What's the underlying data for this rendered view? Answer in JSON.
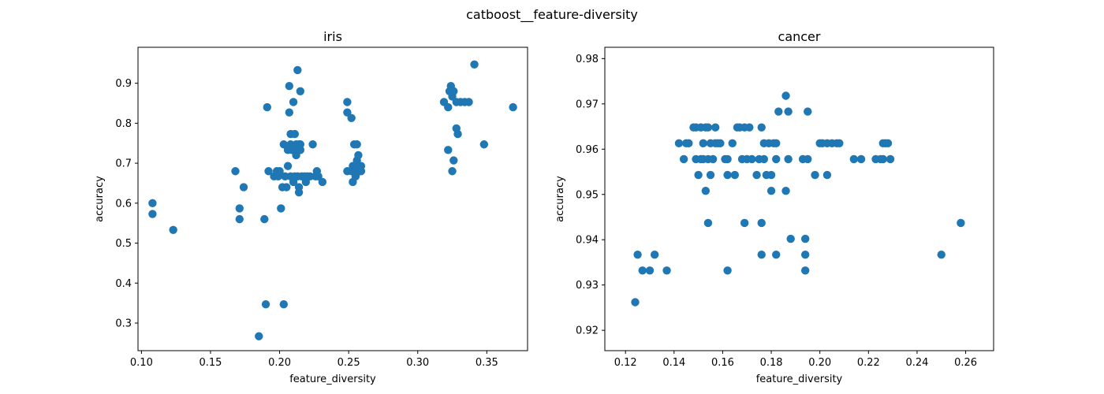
{
  "suptitle": "catboost__feature-diversity",
  "chart_data": [
    {
      "type": "scatter",
      "title": "iris",
      "xlabel": "feature_diversity",
      "ylabel": "accuracy",
      "xlim": [
        0.0975,
        0.3795
      ],
      "ylim": [
        0.231,
        0.99
      ],
      "xticks": [
        0.1,
        0.15,
        0.2,
        0.25,
        0.3,
        0.35
      ],
      "xtick_labels": [
        "0.10",
        "0.15",
        "0.20",
        "0.25",
        "0.30",
        "0.35"
      ],
      "yticks": [
        0.3,
        0.4,
        0.5,
        0.6,
        0.7,
        0.8,
        0.9
      ],
      "ytick_labels": [
        "0.3",
        "0.4",
        "0.5",
        "0.6",
        "0.7",
        "0.8",
        "0.9"
      ],
      "color": "#1f77b4",
      "points": [
        [
          0.108,
          0.6
        ],
        [
          0.108,
          0.573
        ],
        [
          0.123,
          0.533
        ],
        [
          0.168,
          0.68
        ],
        [
          0.171,
          0.587
        ],
        [
          0.171,
          0.56
        ],
        [
          0.174,
          0.64
        ],
        [
          0.185,
          0.267
        ],
        [
          0.189,
          0.56
        ],
        [
          0.19,
          0.347
        ],
        [
          0.191,
          0.84
        ],
        [
          0.192,
          0.68
        ],
        [
          0.196,
          0.667
        ],
        [
          0.198,
          0.68
        ],
        [
          0.199,
          0.667
        ],
        [
          0.2,
          0.68
        ],
        [
          0.201,
          0.587
        ],
        [
          0.202,
          0.64
        ],
        [
          0.203,
          0.347
        ],
        [
          0.203,
          0.747
        ],
        [
          0.204,
          0.667
        ],
        [
          0.205,
          0.64
        ],
        [
          0.206,
          0.733
        ],
        [
          0.206,
          0.693
        ],
        [
          0.207,
          0.893
        ],
        [
          0.207,
          0.827
        ],
        [
          0.208,
          0.747
        ],
        [
          0.208,
          0.667
        ],
        [
          0.208,
          0.773
        ],
        [
          0.209,
          0.733
        ],
        [
          0.21,
          0.853
        ],
        [
          0.21,
          0.653
        ],
        [
          0.211,
          0.773
        ],
        [
          0.211,
          0.667
        ],
        [
          0.212,
          0.747
        ],
        [
          0.212,
          0.72
        ],
        [
          0.213,
          0.933
        ],
        [
          0.213,
          0.733
        ],
        [
          0.213,
          0.667
        ],
        [
          0.214,
          0.747
        ],
        [
          0.214,
          0.64
        ],
        [
          0.214,
          0.627
        ],
        [
          0.215,
          0.88
        ],
        [
          0.215,
          0.747
        ],
        [
          0.215,
          0.733
        ],
        [
          0.216,
          0.667
        ],
        [
          0.218,
          0.667
        ],
        [
          0.219,
          0.653
        ],
        [
          0.22,
          0.667
        ],
        [
          0.222,
          0.667
        ],
        [
          0.224,
          0.747
        ],
        [
          0.226,
          0.667
        ],
        [
          0.227,
          0.68
        ],
        [
          0.228,
          0.667
        ],
        [
          0.231,
          0.653
        ],
        [
          0.249,
          0.853
        ],
        [
          0.249,
          0.827
        ],
        [
          0.249,
          0.68
        ],
        [
          0.252,
          0.68
        ],
        [
          0.252,
          0.813
        ],
        [
          0.253,
          0.653
        ],
        [
          0.253,
          0.693
        ],
        [
          0.254,
          0.68
        ],
        [
          0.254,
          0.747
        ],
        [
          0.255,
          0.693
        ],
        [
          0.255,
          0.667
        ],
        [
          0.256,
          0.747
        ],
        [
          0.256,
          0.707
        ],
        [
          0.256,
          0.68
        ],
        [
          0.257,
          0.72
        ],
        [
          0.257,
          0.693
        ],
        [
          0.258,
          0.68
        ],
        [
          0.259,
          0.693
        ],
        [
          0.259,
          0.68
        ],
        [
          0.319,
          0.853
        ],
        [
          0.322,
          0.733
        ],
        [
          0.322,
          0.84
        ],
        [
          0.323,
          0.88
        ],
        [
          0.324,
          0.893
        ],
        [
          0.325,
          0.68
        ],
        [
          0.325,
          0.867
        ],
        [
          0.326,
          0.707
        ],
        [
          0.326,
          0.88
        ],
        [
          0.328,
          0.853
        ],
        [
          0.328,
          0.787
        ],
        [
          0.329,
          0.773
        ],
        [
          0.331,
          0.853
        ],
        [
          0.334,
          0.853
        ],
        [
          0.337,
          0.853
        ],
        [
          0.341,
          0.947
        ],
        [
          0.348,
          0.747
        ],
        [
          0.369,
          0.84
        ]
      ]
    },
    {
      "type": "scatter",
      "title": "cancer",
      "xlabel": "feature_diversity",
      "ylabel": "accuracy",
      "xlim": [
        0.1115,
        0.2715
      ],
      "ylim": [
        0.9155,
        0.9825
      ],
      "xticks": [
        0.12,
        0.14,
        0.16,
        0.18,
        0.2,
        0.22,
        0.24,
        0.26
      ],
      "xtick_labels": [
        "0.12",
        "0.14",
        "0.16",
        "0.18",
        "0.20",
        "0.22",
        "0.24",
        "0.26"
      ],
      "yticks": [
        0.92,
        0.93,
        0.94,
        0.95,
        0.96,
        0.97,
        0.98
      ],
      "ytick_labels": [
        "0.92",
        "0.93",
        "0.94",
        "0.95",
        "0.96",
        "0.97",
        "0.98"
      ],
      "color": "#1f77b4",
      "points": [
        [
          0.124,
          0.9262
        ],
        [
          0.125,
          0.9367
        ],
        [
          0.127,
          0.9332
        ],
        [
          0.13,
          0.9332
        ],
        [
          0.132,
          0.9367
        ],
        [
          0.137,
          0.9332
        ],
        [
          0.142,
          0.9613
        ],
        [
          0.144,
          0.9578
        ],
        [
          0.145,
          0.9613
        ],
        [
          0.146,
          0.9613
        ],
        [
          0.148,
          0.9648
        ],
        [
          0.149,
          0.9648
        ],
        [
          0.149,
          0.9578
        ],
        [
          0.15,
          0.9543
        ],
        [
          0.151,
          0.9648
        ],
        [
          0.151,
          0.9578
        ],
        [
          0.152,
          0.9613
        ],
        [
          0.152,
          0.9578
        ],
        [
          0.153,
          0.9648
        ],
        [
          0.153,
          0.9508
        ],
        [
          0.154,
          0.9648
        ],
        [
          0.154,
          0.9437
        ],
        [
          0.154,
          0.9578
        ],
        [
          0.155,
          0.9613
        ],
        [
          0.155,
          0.9543
        ],
        [
          0.156,
          0.9578
        ],
        [
          0.157,
          0.9648
        ],
        [
          0.157,
          0.9613
        ],
        [
          0.158,
          0.9613
        ],
        [
          0.159,
          0.9613
        ],
        [
          0.161,
          0.9578
        ],
        [
          0.162,
          0.9543
        ],
        [
          0.162,
          0.9578
        ],
        [
          0.162,
          0.9332
        ],
        [
          0.164,
          0.9613
        ],
        [
          0.165,
          0.9543
        ],
        [
          0.166,
          0.9648
        ],
        [
          0.167,
          0.9648
        ],
        [
          0.168,
          0.9578
        ],
        [
          0.169,
          0.9437
        ],
        [
          0.169,
          0.9648
        ],
        [
          0.17,
          0.9578
        ],
        [
          0.171,
          0.9648
        ],
        [
          0.172,
          0.9578
        ],
        [
          0.174,
          0.9543
        ],
        [
          0.175,
          0.9578
        ],
        [
          0.176,
          0.9648
        ],
        [
          0.176,
          0.9437
        ],
        [
          0.176,
          0.9367
        ],
        [
          0.177,
          0.9578
        ],
        [
          0.177,
          0.9613
        ],
        [
          0.178,
          0.9543
        ],
        [
          0.179,
          0.9613
        ],
        [
          0.18,
          0.9508
        ],
        [
          0.18,
          0.9543
        ],
        [
          0.181,
          0.9613
        ],
        [
          0.182,
          0.9578
        ],
        [
          0.182,
          0.9613
        ],
        [
          0.182,
          0.9367
        ],
        [
          0.183,
          0.9683
        ],
        [
          0.186,
          0.9718
        ],
        [
          0.186,
          0.9508
        ],
        [
          0.187,
          0.9683
        ],
        [
          0.187,
          0.9578
        ],
        [
          0.188,
          0.9402
        ],
        [
          0.193,
          0.9578
        ],
        [
          0.194,
          0.9402
        ],
        [
          0.194,
          0.9367
        ],
        [
          0.194,
          0.9332
        ],
        [
          0.195,
          0.9683
        ],
        [
          0.195,
          0.9578
        ],
        [
          0.198,
          0.9543
        ],
        [
          0.2,
          0.9613
        ],
        [
          0.201,
          0.9613
        ],
        [
          0.203,
          0.9613
        ],
        [
          0.203,
          0.9543
        ],
        [
          0.205,
          0.9613
        ],
        [
          0.207,
          0.9613
        ],
        [
          0.208,
          0.9613
        ],
        [
          0.214,
          0.9578
        ],
        [
          0.217,
          0.9578
        ],
        [
          0.223,
          0.9578
        ],
        [
          0.225,
          0.9578
        ],
        [
          0.226,
          0.9613
        ],
        [
          0.226,
          0.9578
        ],
        [
          0.227,
          0.9613
        ],
        [
          0.228,
          0.9613
        ],
        [
          0.229,
          0.9578
        ],
        [
          0.25,
          0.9367
        ],
        [
          0.258,
          0.9437
        ]
      ]
    }
  ]
}
